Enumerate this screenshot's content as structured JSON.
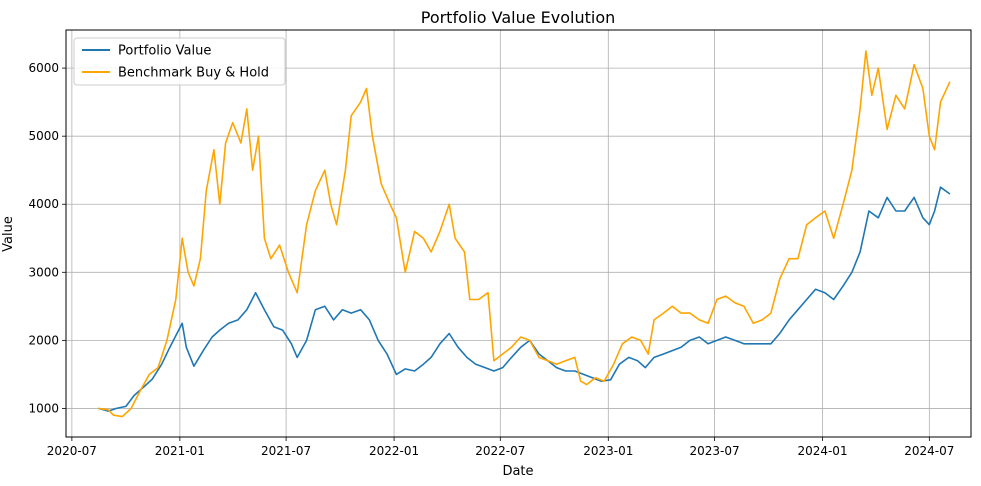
{
  "chart_data": {
    "type": "line",
    "title": "Portfolio Value Evolution",
    "xlabel": "Date",
    "ylabel": "Value",
    "x_ticks": [
      "2020-07",
      "2021-01",
      "2021-07",
      "2022-01",
      "2022-07",
      "2023-01",
      "2023-07",
      "2024-01",
      "2024-07"
    ],
    "y_ticks": [
      1000,
      2000,
      3000,
      4000,
      5000,
      6000
    ],
    "xlim": [
      "2020-06-21",
      "2024-09-10"
    ],
    "ylim": [
      580,
      6560
    ],
    "grid": true,
    "legend_position": "top-left",
    "series": [
      {
        "name": "Portfolio Value",
        "color": "#1f77b4",
        "points": [
          [
            "2020-08-15",
            1000
          ],
          [
            "2020-09-01",
            960
          ],
          [
            "2020-09-15",
            1000
          ],
          [
            "2020-10-01",
            1030
          ],
          [
            "2020-10-15",
            1190
          ],
          [
            "2020-11-01",
            1320
          ],
          [
            "2020-11-15",
            1430
          ],
          [
            "2020-12-01",
            1650
          ],
          [
            "2020-12-15",
            1900
          ],
          [
            "2021-01-05",
            2250
          ],
          [
            "2021-01-12",
            1900
          ],
          [
            "2021-01-25",
            1620
          ],
          [
            "2021-02-10",
            1850
          ],
          [
            "2021-02-25",
            2050
          ],
          [
            "2021-03-10",
            2150
          ],
          [
            "2021-03-25",
            2250
          ],
          [
            "2021-04-10",
            2300
          ],
          [
            "2021-04-25",
            2450
          ],
          [
            "2021-05-10",
            2700
          ],
          [
            "2021-05-25",
            2450
          ],
          [
            "2021-06-10",
            2200
          ],
          [
            "2021-06-25",
            2150
          ],
          [
            "2021-07-10",
            1950
          ],
          [
            "2021-07-20",
            1750
          ],
          [
            "2021-08-05",
            2000
          ],
          [
            "2021-08-20",
            2450
          ],
          [
            "2021-09-05",
            2500
          ],
          [
            "2021-09-20",
            2300
          ],
          [
            "2021-10-05",
            2450
          ],
          [
            "2021-10-20",
            2400
          ],
          [
            "2021-11-05",
            2450
          ],
          [
            "2021-11-20",
            2300
          ],
          [
            "2021-12-05",
            2000
          ],
          [
            "2021-12-20",
            1800
          ],
          [
            "2022-01-05",
            1500
          ],
          [
            "2022-01-20",
            1580
          ],
          [
            "2022-02-05",
            1550
          ],
          [
            "2022-02-20",
            1650
          ],
          [
            "2022-03-05",
            1750
          ],
          [
            "2022-03-20",
            1950
          ],
          [
            "2022-04-05",
            2100
          ],
          [
            "2022-04-20",
            1900
          ],
          [
            "2022-05-05",
            1750
          ],
          [
            "2022-05-20",
            1650
          ],
          [
            "2022-06-05",
            1600
          ],
          [
            "2022-06-20",
            1550
          ],
          [
            "2022-07-05",
            1600
          ],
          [
            "2022-07-20",
            1750
          ],
          [
            "2022-08-05",
            1900
          ],
          [
            "2022-08-20",
            2000
          ],
          [
            "2022-09-05",
            1800
          ],
          [
            "2022-09-20",
            1700
          ],
          [
            "2022-10-05",
            1600
          ],
          [
            "2022-10-20",
            1550
          ],
          [
            "2022-11-05",
            1550
          ],
          [
            "2022-11-20",
            1500
          ],
          [
            "2022-12-05",
            1450
          ],
          [
            "2022-12-20",
            1400
          ],
          [
            "2023-01-05",
            1420
          ],
          [
            "2023-01-20",
            1650
          ],
          [
            "2023-02-05",
            1750
          ],
          [
            "2023-02-20",
            1700
          ],
          [
            "2023-03-05",
            1600
          ],
          [
            "2023-03-20",
            1750
          ],
          [
            "2023-04-05",
            1800
          ],
          [
            "2023-04-20",
            1850
          ],
          [
            "2023-05-05",
            1900
          ],
          [
            "2023-05-20",
            2000
          ],
          [
            "2023-06-05",
            2050
          ],
          [
            "2023-06-20",
            1950
          ],
          [
            "2023-07-05",
            2000
          ],
          [
            "2023-07-20",
            2050
          ],
          [
            "2023-08-05",
            2000
          ],
          [
            "2023-08-20",
            1950
          ],
          [
            "2023-09-05",
            1950
          ],
          [
            "2023-09-20",
            1950
          ],
          [
            "2023-10-05",
            1950
          ],
          [
            "2023-10-20",
            2100
          ],
          [
            "2023-11-05",
            2300
          ],
          [
            "2023-11-20",
            2450
          ],
          [
            "2023-12-05",
            2600
          ],
          [
            "2023-12-20",
            2750
          ],
          [
            "2024-01-05",
            2700
          ],
          [
            "2024-01-20",
            2600
          ],
          [
            "2024-02-05",
            2800
          ],
          [
            "2024-02-20",
            3000
          ],
          [
            "2024-03-05",
            3300
          ],
          [
            "2024-03-20",
            3900
          ],
          [
            "2024-04-05",
            3800
          ],
          [
            "2024-04-20",
            4100
          ],
          [
            "2024-05-05",
            3900
          ],
          [
            "2024-05-20",
            3900
          ],
          [
            "2024-06-05",
            4100
          ],
          [
            "2024-06-20",
            3800
          ],
          [
            "2024-07-01",
            3700
          ],
          [
            "2024-07-10",
            3900
          ],
          [
            "2024-07-20",
            4250
          ],
          [
            "2024-08-05",
            4150
          ]
        ]
      },
      {
        "name": "Benchmark Buy & Hold",
        "color": "#ffa500",
        "points": [
          [
            "2020-08-15",
            1000
          ],
          [
            "2020-09-01",
            980
          ],
          [
            "2020-09-10",
            900
          ],
          [
            "2020-09-25",
            880
          ],
          [
            "2020-10-10",
            1000
          ],
          [
            "2020-10-25",
            1250
          ],
          [
            "2020-11-10",
            1500
          ],
          [
            "2020-11-25",
            1600
          ],
          [
            "2020-12-10",
            2000
          ],
          [
            "2020-12-25",
            2600
          ],
          [
            "2021-01-05",
            3500
          ],
          [
            "2021-01-15",
            3000
          ],
          [
            "2021-01-25",
            2800
          ],
          [
            "2021-02-05",
            3200
          ],
          [
            "2021-02-15",
            4200
          ],
          [
            "2021-02-28",
            4800
          ],
          [
            "2021-03-10",
            4000
          ],
          [
            "2021-03-20",
            4900
          ],
          [
            "2021-04-01",
            5200
          ],
          [
            "2021-04-15",
            4900
          ],
          [
            "2021-04-25",
            5400
          ],
          [
            "2021-05-05",
            4500
          ],
          [
            "2021-05-15",
            5000
          ],
          [
            "2021-05-25",
            3500
          ],
          [
            "2021-06-05",
            3200
          ],
          [
            "2021-06-20",
            3400
          ],
          [
            "2021-07-05",
            3000
          ],
          [
            "2021-07-20",
            2700
          ],
          [
            "2021-08-05",
            3700
          ],
          [
            "2021-08-20",
            4200
          ],
          [
            "2021-09-05",
            4500
          ],
          [
            "2021-09-15",
            4000
          ],
          [
            "2021-09-25",
            3700
          ],
          [
            "2021-10-10",
            4500
          ],
          [
            "2021-10-20",
            5300
          ],
          [
            "2021-11-05",
            5500
          ],
          [
            "2021-11-15",
            5700
          ],
          [
            "2021-11-25",
            5000
          ],
          [
            "2021-12-10",
            4300
          ],
          [
            "2021-12-25",
            4000
          ],
          [
            "2022-01-05",
            3800
          ],
          [
            "2022-01-20",
            3000
          ],
          [
            "2022-02-05",
            3600
          ],
          [
            "2022-02-20",
            3500
          ],
          [
            "2022-03-05",
            3300
          ],
          [
            "2022-03-20",
            3600
          ],
          [
            "2022-04-05",
            4000
          ],
          [
            "2022-04-15",
            3500
          ],
          [
            "2022-05-01",
            3300
          ],
          [
            "2022-05-10",
            2600
          ],
          [
            "2022-05-25",
            2600
          ],
          [
            "2022-06-10",
            2700
          ],
          [
            "2022-06-20",
            1700
          ],
          [
            "2022-07-05",
            1800
          ],
          [
            "2022-07-20",
            1900
          ],
          [
            "2022-08-05",
            2050
          ],
          [
            "2022-08-20",
            2000
          ],
          [
            "2022-09-05",
            1750
          ],
          [
            "2022-09-20",
            1700
          ],
          [
            "2022-10-05",
            1650
          ],
          [
            "2022-10-20",
            1700
          ],
          [
            "2022-11-05",
            1750
          ],
          [
            "2022-11-15",
            1400
          ],
          [
            "2022-11-25",
            1350
          ],
          [
            "2022-12-10",
            1450
          ],
          [
            "2022-12-25",
            1400
          ],
          [
            "2023-01-10",
            1650
          ],
          [
            "2023-01-25",
            1950
          ],
          [
            "2023-02-10",
            2050
          ],
          [
            "2023-02-25",
            2000
          ],
          [
            "2023-03-10",
            1800
          ],
          [
            "2023-03-20",
            2300
          ],
          [
            "2023-04-05",
            2400
          ],
          [
            "2023-04-20",
            2500
          ],
          [
            "2023-05-05",
            2400
          ],
          [
            "2023-05-20",
            2400
          ],
          [
            "2023-06-05",
            2300
          ],
          [
            "2023-06-20",
            2250
          ],
          [
            "2023-07-05",
            2600
          ],
          [
            "2023-07-20",
            2650
          ],
          [
            "2023-08-05",
            2550
          ],
          [
            "2023-08-20",
            2500
          ],
          [
            "2023-09-05",
            2250
          ],
          [
            "2023-09-20",
            2300
          ],
          [
            "2023-10-05",
            2400
          ],
          [
            "2023-10-20",
            2900
          ],
          [
            "2023-11-05",
            3200
          ],
          [
            "2023-11-20",
            3200
          ],
          [
            "2023-12-05",
            3700
          ],
          [
            "2023-12-20",
            3800
          ],
          [
            "2024-01-05",
            3900
          ],
          [
            "2024-01-20",
            3500
          ],
          [
            "2024-02-05",
            4000
          ],
          [
            "2024-02-20",
            4500
          ],
          [
            "2024-03-05",
            5400
          ],
          [
            "2024-03-15",
            6250
          ],
          [
            "2024-03-25",
            5600
          ],
          [
            "2024-04-05",
            6000
          ],
          [
            "2024-04-20",
            5100
          ],
          [
            "2024-05-05",
            5600
          ],
          [
            "2024-05-20",
            5400
          ],
          [
            "2024-06-05",
            6050
          ],
          [
            "2024-06-20",
            5700
          ],
          [
            "2024-07-01",
            5000
          ],
          [
            "2024-07-10",
            4800
          ],
          [
            "2024-07-20",
            5500
          ],
          [
            "2024-08-05",
            5800
          ]
        ]
      }
    ]
  }
}
